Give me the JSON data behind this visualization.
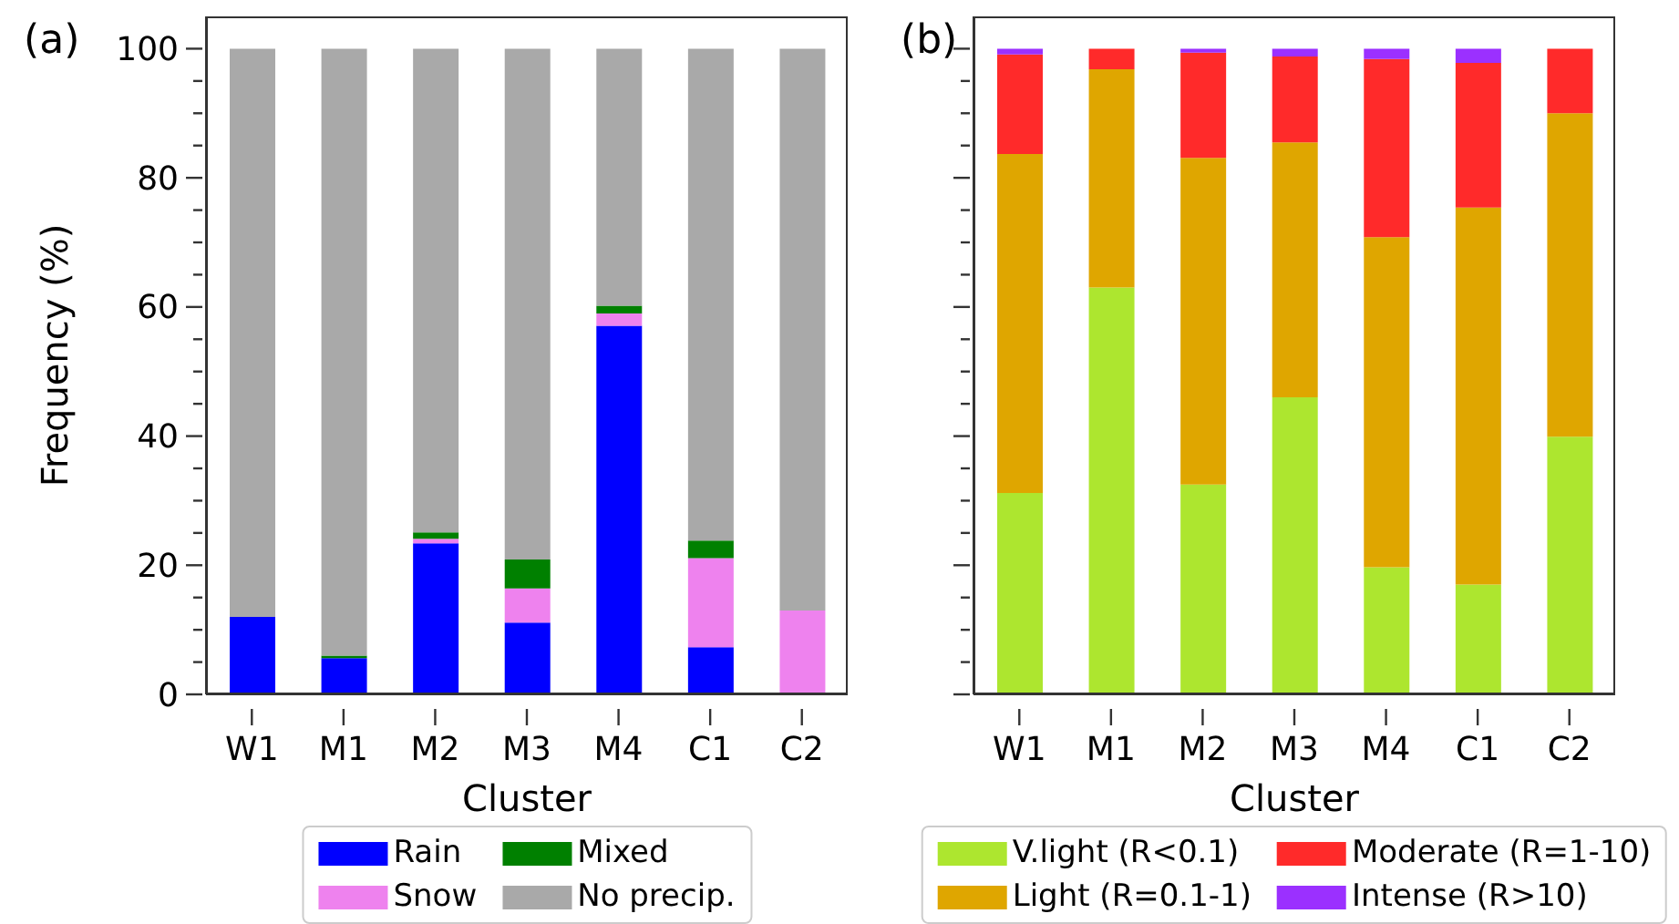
{
  "chart_data": [
    {
      "type": "bar",
      "stacked": true,
      "title": "(a)",
      "xlabel": "Cluster",
      "ylabel": "Frequency (%)",
      "categories": [
        "W1",
        "M1",
        "M2",
        "M3",
        "M4",
        "C1",
        "C2"
      ],
      "legend": "bottom",
      "series": [
        {
          "name": "Rain",
          "color": "#0000ff",
          "values": [
            12.0,
            5.6,
            23.4,
            11.1,
            57.1,
            7.3,
            0
          ]
        },
        {
          "name": "Snow",
          "color": "#ee82ee",
          "values": [
            0,
            0,
            0.7,
            5.3,
            1.9,
            13.8,
            13.0
          ]
        },
        {
          "name": "Mixed",
          "color": "#008000",
          "values": [
            0,
            0.4,
            1.0,
            4.5,
            1.2,
            2.7,
            0
          ]
        },
        {
          "name": "No precip.",
          "color": "#a9a9a9",
          "values": [
            88.0,
            94.0,
            74.9,
            79.1,
            39.8,
            76.2,
            87.0
          ]
        }
      ],
      "ylim": [
        0,
        105
      ],
      "yticks": [
        0,
        {
          "value": 5,
          "label": null
        },
        {
          "value": 10,
          "label": null
        },
        {
          "value": 15,
          "label": null
        },
        20,
        {
          "value": 25,
          "label": null
        },
        {
          "value": 30,
          "label": null
        },
        {
          "value": 35,
          "label": null
        },
        40,
        {
          "value": 45,
          "label": null
        },
        {
          "value": 50,
          "label": null
        },
        {
          "value": 55,
          "label": null
        },
        60,
        {
          "value": 65,
          "label": null
        },
        {
          "value": 70,
          "label": null
        },
        {
          "value": 75,
          "label": null
        },
        80,
        {
          "value": 85,
          "label": null
        },
        {
          "value": 90,
          "label": null
        },
        {
          "value": 95,
          "label": null
        },
        100
      ]
    },
    {
      "type": "bar",
      "stacked": true,
      "title": "(b)",
      "xlabel": "Cluster",
      "categories": [
        "W1",
        "M1",
        "M2",
        "M3",
        "M4",
        "C1",
        "C2"
      ],
      "legend": "bottom",
      "tick_labels": "x",
      "series": [
        {
          "name": "V.light (R<0.1)",
          "color": "#ade62f",
          "values": [
            31.2,
            63.0,
            32.5,
            46.0,
            19.7,
            17.0,
            39.9
          ]
        },
        {
          "name": "Light (R=0.1-1)",
          "color": "#dfa600",
          "values": [
            52.5,
            33.8,
            50.6,
            39.5,
            51.1,
            58.4,
            50.1
          ]
        },
        {
          "name": "Moderate (R=1-10)",
          "color": "#ff2a2a",
          "values": [
            15.4,
            3.2,
            16.3,
            13.3,
            27.6,
            22.4,
            10.0
          ]
        },
        {
          "name": "Intense (R>10)",
          "color": "#9b30ff",
          "values": [
            0.9,
            0,
            0.6,
            1.2,
            1.6,
            2.2,
            0
          ]
        }
      ],
      "ylim": [
        0,
        105
      ],
      "yticks": [
        0,
        {
          "value": 5,
          "label": null
        },
        {
          "value": 10,
          "label": null
        },
        {
          "value": 15,
          "label": null
        },
        20,
        {
          "value": 25,
          "label": null
        },
        {
          "value": 30,
          "label": null
        },
        {
          "value": 35,
          "label": null
        },
        40,
        {
          "value": 45,
          "label": null
        },
        {
          "value": 50,
          "label": null
        },
        {
          "value": 55,
          "label": null
        },
        60,
        {
          "value": 65,
          "label": null
        },
        {
          "value": 70,
          "label": null
        },
        {
          "value": 75,
          "label": null
        },
        80,
        {
          "value": 85,
          "label": null
        },
        {
          "value": 90,
          "label": null
        },
        {
          "value": 95,
          "label": null
        },
        100
      ]
    }
  ]
}
